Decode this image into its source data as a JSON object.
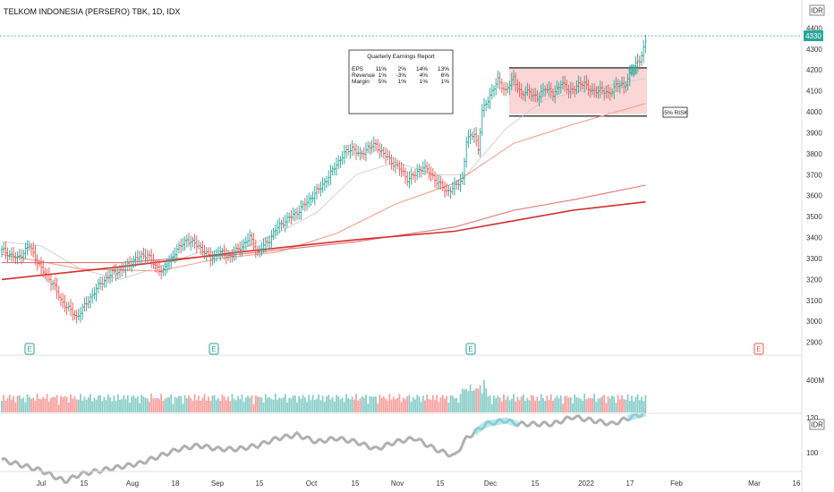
{
  "header": {
    "title": "TELKOM INDONESIA (PERSERO) TBK, 1D, IDX"
  },
  "currency_label": "IDR",
  "indicator_label": "IDR",
  "risk_label": "-5% RISK",
  "earnings_marker": "E",
  "colors": {
    "up": "#26a69a",
    "down": "#ef5350",
    "ma_short": "#c8c8c8",
    "ma_mid": "#f4a08c",
    "ma_long": "#d32f2f",
    "ma_long2": "#e57373",
    "last_price_badge": "#26a69a",
    "zone_fill": "#f8c8c8",
    "rs_line": "#b0b0b0",
    "rs_highlight": "#80deea"
  },
  "earnings_table": {
    "title": "Quarterly Earnings Report",
    "rows": [
      {
        "label": "EPS",
        "values": [
          "11%",
          "2%",
          "14%",
          "13%"
        ]
      },
      {
        "label": "Revenue",
        "values": [
          "1%",
          "-3%",
          "4%",
          "6%"
        ]
      },
      {
        "label": "Margin",
        "values": [
          "5%",
          "1%",
          "1%",
          "1%"
        ]
      }
    ]
  },
  "chart_data": {
    "type": "candlestick",
    "title": "TELKOM INDONESIA (PERSERO) TBK, 1D, IDX",
    "price_axis": {
      "ticks": [
        2900,
        3000,
        3100,
        3200,
        3300,
        3400,
        3500,
        3600,
        3700,
        3800,
        3900,
        4000,
        4100,
        4200,
        4300,
        4400
      ],
      "range": [
        2860,
        4440
      ],
      "last_price": 4330
    },
    "volume_axis": {
      "ticks": [
        "400M"
      ]
    },
    "indicator_axis": {
      "ticks": [
        100,
        120
      ]
    },
    "x_ticks": [
      "Jul",
      "15",
      "Aug",
      "18",
      "Sep",
      "15",
      "Oct",
      "15",
      "Nov",
      "15",
      "Dec",
      "15",
      "2022",
      "17",
      "Feb",
      "Mar",
      "16"
    ],
    "range_box": {
      "top": 4210,
      "bottom": 3990,
      "risk_level": 3980
    },
    "price_path": [
      [
        0,
        3340
      ],
      [
        8,
        3300
      ],
      [
        14,
        3360
      ],
      [
        20,
        3250
      ],
      [
        26,
        3180
      ],
      [
        30,
        3100
      ],
      [
        34,
        3060
      ],
      [
        38,
        3020
      ],
      [
        44,
        3100
      ],
      [
        50,
        3180
      ],
      [
        56,
        3230
      ],
      [
        62,
        3250
      ],
      [
        68,
        3300
      ],
      [
        74,
        3320
      ],
      [
        78,
        3260
      ],
      [
        82,
        3240
      ],
      [
        88,
        3330
      ],
      [
        94,
        3390
      ],
      [
        100,
        3360
      ],
      [
        106,
        3300
      ],
      [
        110,
        3330
      ],
      [
        116,
        3310
      ],
      [
        122,
        3360
      ],
      [
        126,
        3400
      ],
      [
        130,
        3330
      ],
      [
        136,
        3390
      ],
      [
        140,
        3450
      ],
      [
        144,
        3480
      ],
      [
        150,
        3520
      ],
      [
        154,
        3560
      ],
      [
        158,
        3600
      ],
      [
        162,
        3640
      ],
      [
        166,
        3690
      ],
      [
        170,
        3750
      ],
      [
        174,
        3800
      ],
      [
        178,
        3830
      ],
      [
        182,
        3790
      ],
      [
        186,
        3830
      ],
      [
        190,
        3840
      ],
      [
        194,
        3800
      ],
      [
        198,
        3760
      ],
      [
        202,
        3730
      ],
      [
        206,
        3680
      ],
      [
        210,
        3700
      ],
      [
        214,
        3740
      ],
      [
        218,
        3700
      ],
      [
        222,
        3660
      ],
      [
        226,
        3620
      ],
      [
        230,
        3640
      ],
      [
        234,
        3680
      ],
      [
        236,
        3860
      ],
      [
        240,
        3900
      ],
      [
        242,
        3820
      ],
      [
        244,
        4000
      ],
      [
        248,
        4080
      ],
      [
        252,
        4150
      ],
      [
        256,
        4100
      ],
      [
        260,
        4160
      ],
      [
        264,
        4080
      ],
      [
        268,
        4100
      ],
      [
        272,
        4060
      ],
      [
        276,
        4120
      ],
      [
        280,
        4080
      ],
      [
        284,
        4140
      ],
      [
        288,
        4100
      ],
      [
        292,
        4120
      ],
      [
        296,
        4140
      ],
      [
        300,
        4090
      ],
      [
        304,
        4110
      ],
      [
        308,
        4080
      ],
      [
        312,
        4130
      ],
      [
        316,
        4120
      ],
      [
        320,
        4200
      ],
      [
        324,
        4250
      ],
      [
        327,
        4330
      ]
    ],
    "moving_averages": [
      {
        "id": "ma_short",
        "points": [
          [
            0,
            3380
          ],
          [
            20,
            3360
          ],
          [
            40,
            3250
          ],
          [
            60,
            3200
          ],
          [
            80,
            3260
          ],
          [
            100,
            3330
          ],
          [
            120,
            3340
          ],
          [
            140,
            3420
          ],
          [
            160,
            3520
          ],
          [
            180,
            3700
          ],
          [
            200,
            3760
          ],
          [
            220,
            3700
          ],
          [
            236,
            3700
          ],
          [
            256,
            3920
          ],
          [
            276,
            4060
          ],
          [
            300,
            4110
          ],
          [
            327,
            4160
          ]
        ]
      },
      {
        "id": "ma_mid",
        "points": [
          [
            0,
            3320
          ],
          [
            40,
            3250
          ],
          [
            80,
            3240
          ],
          [
            110,
            3300
          ],
          [
            140,
            3330
          ],
          [
            170,
            3420
          ],
          [
            200,
            3560
          ],
          [
            230,
            3660
          ],
          [
            260,
            3850
          ],
          [
            290,
            3940
          ],
          [
            327,
            4040
          ]
        ]
      },
      {
        "id": "ma_long2",
        "points": [
          [
            0,
            3280
          ],
          [
            60,
            3280
          ],
          [
            120,
            3320
          ],
          [
            180,
            3380
          ],
          [
            230,
            3450
          ],
          [
            260,
            3530
          ],
          [
            290,
            3580
          ],
          [
            327,
            3650
          ]
        ]
      },
      {
        "id": "ma_long",
        "points": [
          [
            0,
            3200
          ],
          [
            60,
            3260
          ],
          [
            120,
            3330
          ],
          [
            180,
            3390
          ],
          [
            230,
            3430
          ],
          [
            260,
            3480
          ],
          [
            290,
            3530
          ],
          [
            327,
            3570
          ]
        ]
      }
    ],
    "earnings_markers_at": [
      14,
      108,
      239,
      385
    ],
    "rs_path": [
      [
        0,
        98
      ],
      [
        10,
        95
      ],
      [
        20,
        92
      ],
      [
        28,
        88
      ],
      [
        32,
        86
      ],
      [
        40,
        90
      ],
      [
        50,
        92
      ],
      [
        60,
        94
      ],
      [
        70,
        96
      ],
      [
        80,
        100
      ],
      [
        90,
        104
      ],
      [
        100,
        106
      ],
      [
        110,
        104
      ],
      [
        120,
        104
      ],
      [
        130,
        106
      ],
      [
        140,
        110
      ],
      [
        150,
        112
      ],
      [
        160,
        108
      ],
      [
        170,
        110
      ],
      [
        180,
        108
      ],
      [
        190,
        104
      ],
      [
        200,
        108
      ],
      [
        210,
        110
      ],
      [
        220,
        104
      ],
      [
        230,
        100
      ],
      [
        236,
        110
      ],
      [
        246,
        118
      ],
      [
        256,
        120
      ],
      [
        262,
        118
      ],
      [
        270,
        118
      ],
      [
        280,
        118
      ],
      [
        290,
        122
      ],
      [
        300,
        120
      ],
      [
        310,
        118
      ],
      [
        320,
        122
      ],
      [
        327,
        124
      ]
    ]
  }
}
